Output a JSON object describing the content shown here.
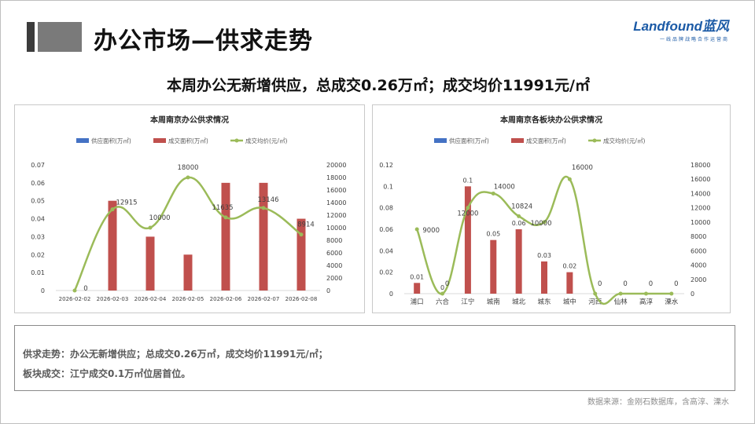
{
  "page": {
    "title": "办公市场—供求走势",
    "headline": "本周办公无新增供应，总成交0.26万㎡；成交均价11991元/㎡",
    "logo": {
      "brand": "Landfound蓝风",
      "tagline": "一线品牌战略合作运营商"
    },
    "summary": [
      "供求走势：办公无新增供应；总成交0.26万㎡，成交均价11991元/㎡；",
      "板块成交：江宁成交0.1万㎡位居首位。"
    ],
    "source": "数据来源：金刚石数据库，含高淳、溧水"
  },
  "colors": {
    "supply": "#4472c4",
    "deal": "#c0504d",
    "price": "#9bbb59",
    "text": "#404040",
    "axis": "#d9d9d9"
  },
  "chart_data": [
    {
      "type": "bar",
      "title": "本周南京办公供求情况",
      "legend": [
        "供应面积(万㎡)",
        "成交面积(万㎡)",
        "成交均价(元/㎡)"
      ],
      "legend_position": "top",
      "categories": [
        "2026-02-02",
        "2026-02-03",
        "2026-02-04",
        "2026-02-05",
        "2026-02-06",
        "2026-02-07",
        "2026-02-08"
      ],
      "series": [
        {
          "name": "供应面积(万㎡)",
          "type": "bar",
          "axis": "left",
          "values": [
            0,
            0,
            0,
            0,
            0,
            0,
            0
          ]
        },
        {
          "name": "成交面积(万㎡)",
          "type": "bar",
          "axis": "left",
          "values": [
            0,
            0.05,
            0.03,
            0.02,
            0.06,
            0.06,
            0.04
          ]
        },
        {
          "name": "成交均价(元/㎡)",
          "type": "line",
          "axis": "right",
          "values": [
            0,
            12915,
            10000,
            18000,
            11635,
            13146,
            8914
          ]
        }
      ],
      "price_labels": [
        "0",
        "12915",
        "10000",
        "18000",
        "11635",
        "13146",
        "8914"
      ],
      "ylim_left": [
        0,
        0.07
      ],
      "yticks_left": [
        "0",
        "0.01",
        "0.02",
        "0.03",
        "0.04",
        "0.05",
        "0.06",
        "0.07"
      ],
      "ylim_right": [
        0,
        20000
      ],
      "yticks_right": [
        "0",
        "2000",
        "4000",
        "6000",
        "8000",
        "10000",
        "12000",
        "14000",
        "16000",
        "18000",
        "20000"
      ],
      "grid": false
    },
    {
      "type": "bar",
      "title": "本周南京各板块办公供求情况",
      "legend": [
        "供应面积(万㎡)",
        "成交面积(万㎡)",
        "成交均价(元/㎡)"
      ],
      "legend_position": "top",
      "categories": [
        "浦口",
        "六合",
        "江宁",
        "城南",
        "城北",
        "城东",
        "城中",
        "河西",
        "仙林",
        "高淳",
        "溧水"
      ],
      "series": [
        {
          "name": "供应面积(万㎡)",
          "type": "bar",
          "axis": "left",
          "values": [
            0,
            0,
            0,
            0,
            0,
            0,
            0,
            0,
            0,
            0,
            0
          ]
        },
        {
          "name": "成交面积(万㎡)",
          "type": "bar",
          "axis": "left",
          "values": [
            0.01,
            0,
            0.1,
            0.05,
            0.06,
            0.03,
            0.02,
            0,
            0,
            0,
            0
          ]
        },
        {
          "name": "成交均价(元/㎡)",
          "type": "line",
          "axis": "right",
          "values": [
            9000,
            0,
            12000,
            14000,
            10824,
            10000,
            16000,
            0,
            0,
            0,
            0
          ]
        }
      ],
      "bar_labels": [
        "0.01",
        "0",
        "0.1",
        "0.05",
        "0.06",
        "0.03",
        "0.02",
        "",
        "",
        "",
        ""
      ],
      "price_labels": [
        "9000",
        "0",
        "12000",
        "14000",
        "10824",
        "10000",
        "16000",
        "0",
        "0",
        "0",
        "0"
      ],
      "ylim_left": [
        0,
        0.12
      ],
      "yticks_left": [
        "0",
        "0.02",
        "0.04",
        "0.06",
        "0.08",
        "0.1",
        "0.12"
      ],
      "ylim_right": [
        0,
        18000
      ],
      "yticks_right": [
        "0",
        "2000",
        "4000",
        "6000",
        "8000",
        "10000",
        "12000",
        "14000",
        "16000",
        "18000"
      ],
      "grid": false
    }
  ]
}
